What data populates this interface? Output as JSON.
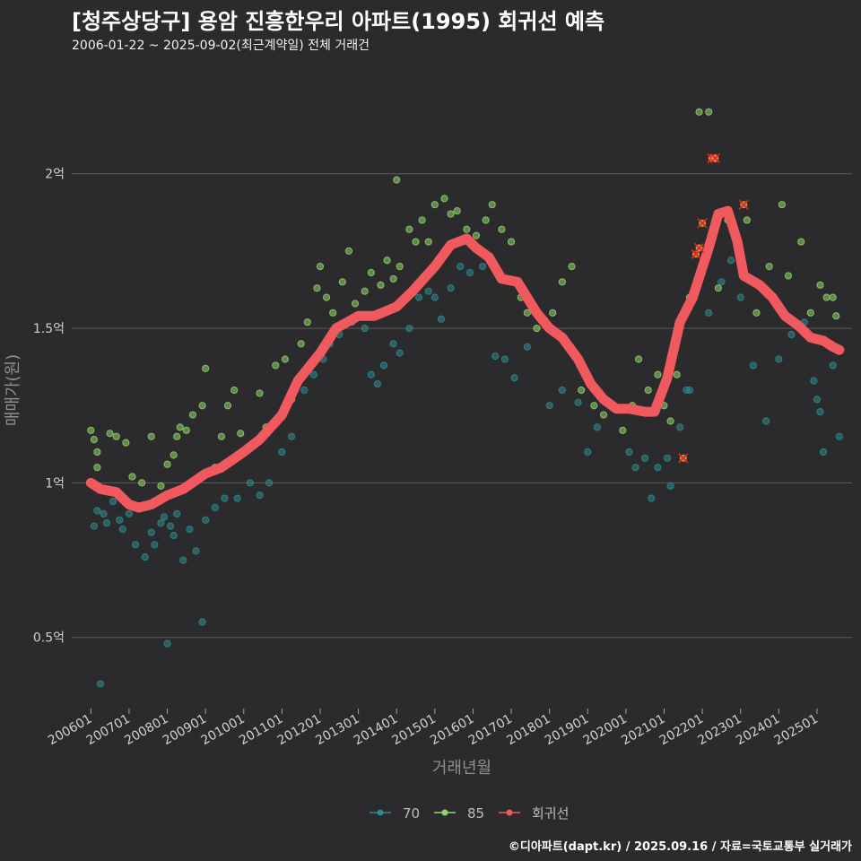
{
  "header": {
    "title": "[청주상당구] 용암 진흥한우리 아파트(1995) 회귀선 예측",
    "subtitle": "2006-01-22 ~ 2025-09-02(최근계약일) 전체 거래건"
  },
  "caption": "©디아파트(dapt.kr) / 2025.09.16 / 자료=국토교통부 실거래가",
  "colors": {
    "background": "#2b2a2d",
    "grid": "#5c5c5c",
    "series_70": "#2f8a8c",
    "series_85": "#8fd46c",
    "regression": "#f05a5e",
    "outlier_cross": "#d8282a",
    "outlier_fill": "#e9b531"
  },
  "chart_data": {
    "type": "scatter",
    "xlabel": "거래년월",
    "ylabel": "매매가(원)",
    "xlim": [
      "2005-07",
      "2025-12"
    ],
    "ylim": [
      0.27,
      2.33
    ],
    "y_unit": "억",
    "x_ticks": [
      "200601",
      "200701",
      "200801",
      "200901",
      "201001",
      "201101",
      "201201",
      "201301",
      "201401",
      "201501",
      "201601",
      "201701",
      "201801",
      "201901",
      "202001",
      "202101",
      "202201",
      "202301",
      "202401",
      "202501"
    ],
    "y_ticks": [
      {
        "value": 0.5,
        "label": "0.5억"
      },
      {
        "value": 1.0,
        "label": "1억"
      },
      {
        "value": 1.5,
        "label": "1.5억"
      },
      {
        "value": 2.0,
        "label": "2억"
      }
    ],
    "grid": true,
    "legend_position": "bottom",
    "legend": [
      {
        "key": "70",
        "label": "70"
      },
      {
        "key": "85",
        "label": "85"
      },
      {
        "key": "reg",
        "label": "회귀선"
      }
    ],
    "series": [
      {
        "name": "70",
        "points": [
          [
            "2006-02",
            0.86
          ],
          [
            "2006-03",
            0.91
          ],
          [
            "2006-05",
            0.9
          ],
          [
            "2006-06",
            0.87
          ],
          [
            "2006-08",
            0.94
          ],
          [
            "2006-10",
            0.88
          ],
          [
            "2006-11",
            0.85
          ],
          [
            "2007-01",
            0.9
          ],
          [
            "2007-03",
            0.8
          ],
          [
            "2007-06",
            0.76
          ],
          [
            "2007-08",
            0.84
          ],
          [
            "2007-09",
            0.8
          ],
          [
            "2007-11",
            0.87
          ],
          [
            "2007-12",
            0.89
          ],
          [
            "2008-02",
            0.86
          ],
          [
            "2008-03",
            0.83
          ],
          [
            "2008-04",
            0.9
          ],
          [
            "2008-06",
            0.75
          ],
          [
            "2008-08",
            0.85
          ],
          [
            "2008-10",
            0.78
          ],
          [
            "2009-01",
            0.88
          ],
          [
            "2009-04",
            0.92
          ],
          [
            "2009-07",
            0.95
          ],
          [
            "2009-11",
            0.95
          ],
          [
            "2010-03",
            1.0
          ],
          [
            "2010-06",
            0.96
          ],
          [
            "2010-09",
            1.0
          ],
          [
            "2011-01",
            1.1
          ],
          [
            "2011-04",
            1.15
          ],
          [
            "2011-08",
            1.3
          ],
          [
            "2011-11",
            1.35
          ],
          [
            "2012-02",
            1.4
          ],
          [
            "2012-04",
            1.45
          ],
          [
            "2012-07",
            1.48
          ],
          [
            "2012-11",
            1.52
          ],
          [
            "2013-03",
            1.5
          ],
          [
            "2013-05",
            1.35
          ],
          [
            "2013-07",
            1.32
          ],
          [
            "2013-09",
            1.38
          ],
          [
            "2013-12",
            1.45
          ],
          [
            "2014-02",
            1.42
          ],
          [
            "2014-05",
            1.5
          ],
          [
            "2014-08",
            1.6
          ],
          [
            "2014-11",
            1.62
          ],
          [
            "2015-01",
            1.6
          ],
          [
            "2015-03",
            1.53
          ],
          [
            "2015-06",
            1.63
          ],
          [
            "2015-09",
            1.7
          ],
          [
            "2015-12",
            1.68
          ],
          [
            "2016-04",
            1.7
          ],
          [
            "2016-08",
            1.41
          ],
          [
            "2016-11",
            1.4
          ],
          [
            "2017-02",
            1.34
          ],
          [
            "2017-06",
            1.44
          ],
          [
            "2018-01",
            1.25
          ],
          [
            "2018-05",
            1.3
          ],
          [
            "2018-10",
            1.26
          ],
          [
            "2019-01",
            1.1
          ],
          [
            "2019-04",
            1.18
          ],
          [
            "2019-09",
            1.25
          ],
          [
            "2020-02",
            1.1
          ],
          [
            "2020-04",
            1.05
          ],
          [
            "2020-07",
            1.08
          ],
          [
            "2020-09",
            0.95
          ],
          [
            "2020-11",
            1.05
          ],
          [
            "2021-02",
            1.08
          ],
          [
            "2021-03",
            0.99
          ],
          [
            "2021-06",
            1.18
          ],
          [
            "2021-08",
            1.3
          ],
          [
            "2021-09",
            1.3
          ],
          [
            "2022-03",
            1.55
          ],
          [
            "2022-07",
            1.65
          ],
          [
            "2022-10",
            1.72
          ],
          [
            "2023-01",
            1.6
          ],
          [
            "2023-05",
            1.38
          ],
          [
            "2023-09",
            1.2
          ],
          [
            "2024-01",
            1.4
          ],
          [
            "2024-05",
            1.48
          ],
          [
            "2024-09",
            1.52
          ],
          [
            "2024-12",
            1.33
          ],
          [
            "2025-01",
            1.27
          ],
          [
            "2025-02",
            1.23
          ],
          [
            "2025-03",
            1.1
          ],
          [
            "2025-06",
            1.38
          ],
          [
            "2025-08",
            1.15
          ],
          [
            "2008-01",
            0.48
          ],
          [
            "2008-12",
            0.55
          ],
          [
            "2006-04",
            0.35
          ]
        ]
      },
      {
        "name": "85",
        "points": [
          [
            "2006-01",
            1.17
          ],
          [
            "2006-02",
            1.14
          ],
          [
            "2006-03",
            1.1
          ],
          [
            "2006-03",
            1.05
          ],
          [
            "2006-07",
            1.16
          ],
          [
            "2006-09",
            1.15
          ],
          [
            "2006-12",
            1.13
          ],
          [
            "2007-02",
            1.02
          ],
          [
            "2007-05",
            1.0
          ],
          [
            "2007-08",
            1.15
          ],
          [
            "2007-11",
            0.99
          ],
          [
            "2008-01",
            1.06
          ],
          [
            "2008-03",
            1.09
          ],
          [
            "2008-04",
            1.15
          ],
          [
            "2008-05",
            1.18
          ],
          [
            "2008-07",
            1.17
          ],
          [
            "2008-09",
            1.22
          ],
          [
            "2008-12",
            1.25
          ],
          [
            "2009-01",
            1.37
          ],
          [
            "2009-04",
            1.05
          ],
          [
            "2009-06",
            1.15
          ],
          [
            "2009-08",
            1.25
          ],
          [
            "2009-10",
            1.3
          ],
          [
            "2009-12",
            1.16
          ],
          [
            "2010-03",
            1.12
          ],
          [
            "2010-06",
            1.29
          ],
          [
            "2010-08",
            1.18
          ],
          [
            "2010-11",
            1.38
          ],
          [
            "2011-02",
            1.4
          ],
          [
            "2011-04",
            1.27
          ],
          [
            "2011-07",
            1.45
          ],
          [
            "2011-09",
            1.52
          ],
          [
            "2011-12",
            1.63
          ],
          [
            "2012-01",
            1.7
          ],
          [
            "2012-03",
            1.6
          ],
          [
            "2012-05",
            1.55
          ],
          [
            "2012-08",
            1.65
          ],
          [
            "2012-10",
            1.75
          ],
          [
            "2012-12",
            1.58
          ],
          [
            "2013-03",
            1.62
          ],
          [
            "2013-05",
            1.68
          ],
          [
            "2013-08",
            1.64
          ],
          [
            "2013-10",
            1.72
          ],
          [
            "2013-12",
            1.66
          ],
          [
            "2014-02",
            1.7
          ],
          [
            "2014-05",
            1.82
          ],
          [
            "2014-07",
            1.78
          ],
          [
            "2014-09",
            1.85
          ],
          [
            "2014-11",
            1.78
          ],
          [
            "2015-01",
            1.9
          ],
          [
            "2015-04",
            1.92
          ],
          [
            "2015-06",
            1.87
          ],
          [
            "2015-08",
            1.88
          ],
          [
            "2015-11",
            1.82
          ],
          [
            "2016-02",
            1.8
          ],
          [
            "2016-05",
            1.85
          ],
          [
            "2016-07",
            1.9
          ],
          [
            "2016-10",
            1.82
          ],
          [
            "2017-01",
            1.78
          ],
          [
            "2017-04",
            1.6
          ],
          [
            "2017-06",
            1.55
          ],
          [
            "2017-09",
            1.5
          ],
          [
            "2018-02",
            1.55
          ],
          [
            "2018-05",
            1.65
          ],
          [
            "2018-08",
            1.7
          ],
          [
            "2018-11",
            1.3
          ],
          [
            "2019-03",
            1.25
          ],
          [
            "2019-06",
            1.22
          ],
          [
            "2019-09",
            1.25
          ],
          [
            "2019-12",
            1.17
          ],
          [
            "2020-03",
            1.25
          ],
          [
            "2020-05",
            1.4
          ],
          [
            "2020-08",
            1.3
          ],
          [
            "2020-11",
            1.35
          ],
          [
            "2021-01",
            1.25
          ],
          [
            "2021-03",
            1.2
          ],
          [
            "2021-05",
            1.35
          ],
          [
            "2021-09",
            1.6
          ],
          [
            "2021-12",
            2.2
          ],
          [
            "2022-03",
            2.2
          ],
          [
            "2022-06",
            1.63
          ],
          [
            "2022-09",
            1.85
          ],
          [
            "2023-03",
            1.85
          ],
          [
            "2023-06",
            1.55
          ],
          [
            "2023-10",
            1.7
          ],
          [
            "2024-02",
            1.9
          ],
          [
            "2024-04",
            1.67
          ],
          [
            "2024-08",
            1.78
          ],
          [
            "2024-11",
            1.55
          ],
          [
            "2025-02",
            1.64
          ],
          [
            "2025-04",
            1.6
          ],
          [
            "2025-06",
            1.6
          ],
          [
            "2025-07",
            1.54
          ],
          [
            "2014-01",
            1.98
          ]
        ]
      }
    ],
    "regression": [
      [
        "2006-01",
        1.0
      ],
      [
        "2006-04",
        0.98
      ],
      [
        "2006-09",
        0.97
      ],
      [
        "2007-01",
        0.93
      ],
      [
        "2007-04",
        0.92
      ],
      [
        "2007-08",
        0.93
      ],
      [
        "2008-01",
        0.96
      ],
      [
        "2008-06",
        0.98
      ],
      [
        "2009-01",
        1.03
      ],
      [
        "2009-06",
        1.05
      ],
      [
        "2010-01",
        1.1
      ],
      [
        "2010-06",
        1.14
      ],
      [
        "2011-01",
        1.22
      ],
      [
        "2011-06",
        1.33
      ],
      [
        "2012-01",
        1.42
      ],
      [
        "2012-06",
        1.5
      ],
      [
        "2013-01",
        1.54
      ],
      [
        "2013-06",
        1.54
      ],
      [
        "2014-01",
        1.57
      ],
      [
        "2014-06",
        1.62
      ],
      [
        "2015-01",
        1.7
      ],
      [
        "2015-06",
        1.77
      ],
      [
        "2015-11",
        1.79
      ],
      [
        "2016-02",
        1.76
      ],
      [
        "2016-06",
        1.73
      ],
      [
        "2016-10",
        1.66
      ],
      [
        "2017-03",
        1.65
      ],
      [
        "2017-09",
        1.55
      ],
      [
        "2018-01",
        1.5
      ],
      [
        "2018-05",
        1.47
      ],
      [
        "2018-10",
        1.4
      ],
      [
        "2019-02",
        1.32
      ],
      [
        "2019-06",
        1.27
      ],
      [
        "2019-10",
        1.24
      ],
      [
        "2020-02",
        1.24
      ],
      [
        "2020-07",
        1.23
      ],
      [
        "2020-10",
        1.23
      ],
      [
        "2021-02",
        1.34
      ],
      [
        "2021-06",
        1.52
      ],
      [
        "2021-10",
        1.6
      ],
      [
        "2022-03",
        1.76
      ],
      [
        "2022-06",
        1.87
      ],
      [
        "2022-09",
        1.88
      ],
      [
        "2022-12",
        1.78
      ],
      [
        "2023-02",
        1.67
      ],
      [
        "2023-07",
        1.64
      ],
      [
        "2023-11",
        1.6
      ],
      [
        "2024-03",
        1.54
      ],
      [
        "2024-07",
        1.51
      ],
      [
        "2024-11",
        1.47
      ],
      [
        "2025-03",
        1.46
      ],
      [
        "2025-06",
        1.44
      ],
      [
        "2025-08",
        1.43
      ]
    ],
    "outliers": [
      [
        "2021-07",
        1.08
      ],
      [
        "2021-11",
        1.74
      ],
      [
        "2021-12",
        1.76
      ],
      [
        "2022-01",
        1.84
      ],
      [
        "2022-04",
        2.05
      ],
      [
        "2022-05",
        2.05
      ],
      [
        "2023-02",
        1.9
      ]
    ]
  }
}
